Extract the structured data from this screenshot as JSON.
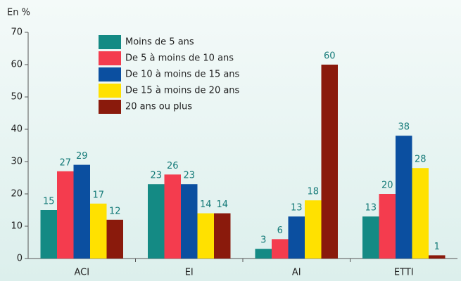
{
  "chart_data": {
    "type": "bar",
    "y_label": "En %",
    "categories": [
      "ACI",
      "EI",
      "AI",
      "ETTI"
    ],
    "series": [
      {
        "name": "Moins de 5 ans",
        "color": "#148a84",
        "values": [
          15,
          23,
          3,
          13
        ]
      },
      {
        "name": "De 5 à moins de 10 ans",
        "color": "#f43c4e",
        "values": [
          27,
          26,
          6,
          20
        ]
      },
      {
        "name": "De 10 à moins de 15 ans",
        "color": "#0b4fa0",
        "values": [
          29,
          23,
          13,
          38
        ]
      },
      {
        "name": "De 15 à moins de 20 ans",
        "color": "#ffe100",
        "values": [
          17,
          14,
          18,
          28
        ]
      },
      {
        "name": "20 ans ou plus",
        "color": "#8a1a0c",
        "values": [
          12,
          14,
          60,
          1
        ]
      }
    ],
    "ylim": [
      0,
      70
    ],
    "yticks": [
      0,
      10,
      20,
      30,
      40,
      50,
      60,
      70
    ],
    "grid": false,
    "legend": "upper left"
  }
}
